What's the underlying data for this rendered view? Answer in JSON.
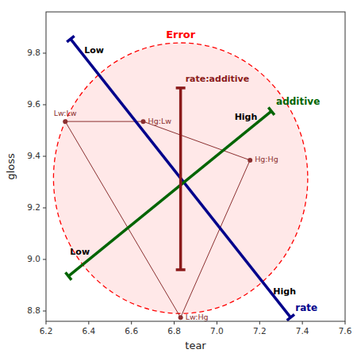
{
  "chart_data": {
    "type": "heplot",
    "xlabel": "tear",
    "ylabel": "gloss",
    "xlim": [
      6.2,
      7.6
    ],
    "ylim": [
      8.76,
      9.96
    ],
    "xticks": [
      6.2,
      6.4,
      6.6,
      6.8,
      {
        "value": 7.0,
        "label": "7.0"
      },
      7.2,
      7.4,
      7.6
    ],
    "yticks": [
      8.8,
      {
        "value": 9.0,
        "label": "9.0"
      },
      9.2,
      9.4,
      9.6,
      9.8
    ],
    "grid": false,
    "ellipse": {
      "name": "Error",
      "center": [
        6.83,
        9.315
      ],
      "rx": 0.595,
      "ry": 0.525,
      "color": "#FF0000",
      "line_style": "dashed"
    },
    "series": [
      {
        "name": "rate",
        "color": "#00008B",
        "x": [
          6.315,
          7.345
        ],
        "values": [
          9.855,
          8.775
        ],
        "labels": [
          "Low",
          "High"
        ]
      },
      {
        "name": "additive",
        "color": "#006400",
        "x": [
          6.305,
          7.255
        ],
        "values": [
          8.935,
          9.575
        ],
        "labels": [
          "Low",
          "High"
        ]
      },
      {
        "name": "rate:additive",
        "color": "#8B1A1A",
        "x": [
          6.83,
          6.83
        ],
        "values": [
          8.96,
          9.665
        ]
      }
    ],
    "points": {
      "labels": [
        "Lw:Lw",
        "Hg:Lw",
        "Hg:Hg",
        "Lw:Hg"
      ],
      "x": [
        6.29,
        6.655,
        7.155,
        6.83
      ],
      "values": [
        9.535,
        9.535,
        9.385,
        8.775
      ],
      "color": "#8B3030"
    }
  }
}
